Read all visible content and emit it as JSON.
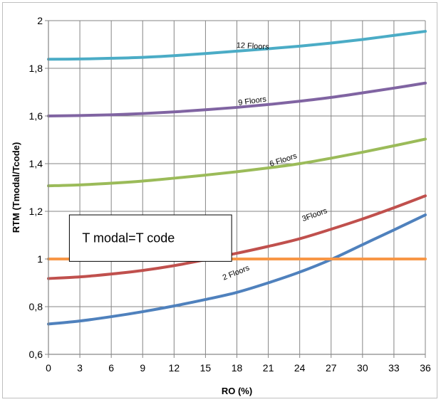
{
  "chart_data": {
    "type": "line",
    "xlabel": "RO (%)",
    "ylabel": "RTM (Tmodal/Tcode)",
    "xlim": [
      0,
      36
    ],
    "ylim": [
      0.6,
      2
    ],
    "x_ticks": [
      "0",
      "3",
      "6",
      "9",
      "12",
      "15",
      "18",
      "21",
      "24",
      "27",
      "30",
      "33",
      "36"
    ],
    "y_ticks": [
      "0,6",
      "0,8",
      "1",
      "1,2",
      "1,4",
      "1,6",
      "1,8",
      "2"
    ],
    "grid": true,
    "x": [
      0,
      3,
      6,
      9,
      12,
      15,
      18,
      21,
      24,
      27,
      30,
      33,
      36
    ],
    "series": [
      {
        "name": "12 Floors",
        "color": "#4bacc6",
        "values": [
          1.838,
          1.839,
          1.842,
          1.846,
          1.853,
          1.862,
          1.872,
          1.882,
          1.893,
          1.906,
          1.921,
          1.938,
          1.955
        ]
      },
      {
        "name": "9 Floors",
        "color": "#8064a2",
        "values": [
          1.6,
          1.602,
          1.605,
          1.61,
          1.617,
          1.626,
          1.636,
          1.648,
          1.662,
          1.678,
          1.697,
          1.717,
          1.738
        ]
      },
      {
        "name": "6 Floors",
        "color": "#9bbb59",
        "values": [
          1.307,
          1.311,
          1.318,
          1.327,
          1.339,
          1.352,
          1.366,
          1.382,
          1.4,
          1.423,
          1.448,
          1.475,
          1.503
        ]
      },
      {
        "name": "3Floors",
        "color": "#c0504d",
        "values": [
          0.918,
          0.925,
          0.937,
          0.952,
          0.972,
          0.997,
          1.024,
          1.053,
          1.085,
          1.125,
          1.168,
          1.215,
          1.265
        ]
      },
      {
        "name": "2 Floors",
        "color": "#4f81bd",
        "values": [
          0.727,
          0.74,
          0.758,
          0.779,
          0.803,
          0.83,
          0.86,
          0.9,
          0.945,
          0.998,
          1.06,
          1.122,
          1.185
        ]
      },
      {
        "name": "",
        "color": "#f79646",
        "values": [
          1,
          1,
          1,
          1,
          1,
          1,
          1,
          1,
          1,
          1,
          1,
          1,
          1
        ]
      }
    ],
    "series_labels": [
      {
        "text": "12 Floors",
        "x": 19.5,
        "y": 1.883,
        "angle": 3
      },
      {
        "text": "9 Floors",
        "x": 19.5,
        "y": 1.653,
        "angle": -8
      },
      {
        "text": "6 Floors",
        "x": 22.5,
        "y": 1.406,
        "angle": -18
      },
      {
        "text": "3Floors",
        "x": 25.5,
        "y": 1.176,
        "angle": -20
      },
      {
        "text": "2 Floors",
        "x": 18.0,
        "y": 0.933,
        "angle": -22
      }
    ],
    "annotation": {
      "text": "T modal=T code",
      "x0": 2,
      "x1": 17.5,
      "y0": 0.99,
      "y1": 1.185
    }
  }
}
